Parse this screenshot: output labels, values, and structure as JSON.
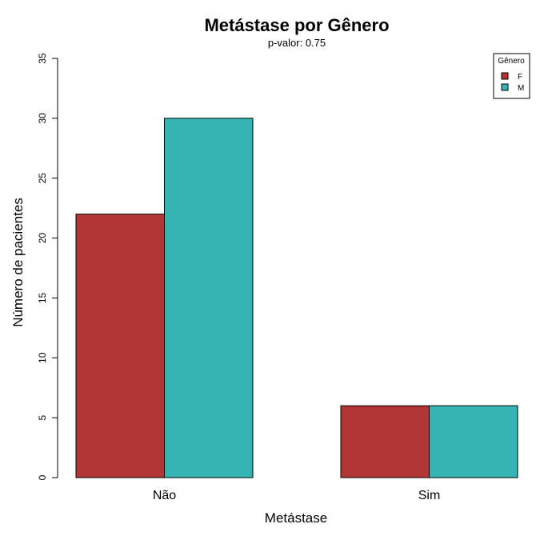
{
  "chart_data": {
    "type": "bar",
    "title": "Metástase por Gênero",
    "subtitle": "p-valor: 0.75",
    "xlabel": "Metástase",
    "ylabel": "Número de pacientes",
    "categories": [
      "Não",
      "Sim"
    ],
    "series": [
      {
        "name": "F",
        "values": [
          22,
          6
        ],
        "color": "#B33636"
      },
      {
        "name": "M",
        "values": [
          30,
          6
        ],
        "color": "#36B3B3"
      }
    ],
    "ylim": [
      0,
      35
    ],
    "yticks": [
      0,
      5,
      10,
      15,
      20,
      25,
      30,
      35
    ],
    "legend": {
      "title": "Gênero",
      "position": "top-right"
    },
    "grid": false
  }
}
